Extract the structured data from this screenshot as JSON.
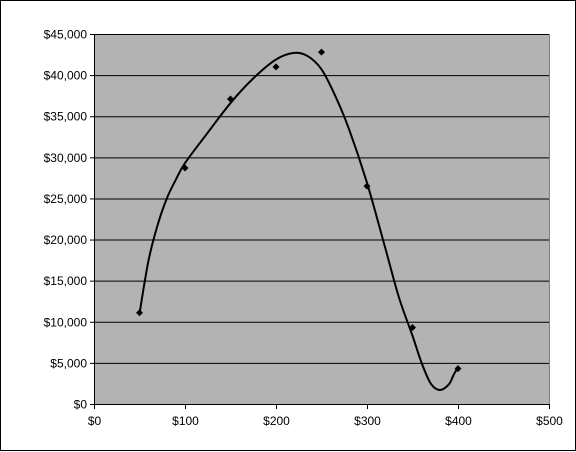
{
  "chart_data": {
    "type": "scatter",
    "title": "",
    "xlabel": "",
    "ylabel": "",
    "xlim": [
      0,
      500
    ],
    "ylim": [
      0,
      45000
    ],
    "x_ticks": [
      0,
      100,
      200,
      300,
      400,
      500
    ],
    "y_ticks": [
      0,
      5000,
      10000,
      15000,
      20000,
      25000,
      30000,
      35000,
      40000,
      45000
    ],
    "x_tick_labels": [
      "$0",
      "$100",
      "$200",
      "$300",
      "$400",
      "$500"
    ],
    "y_tick_labels": [
      "$0",
      "$5,000",
      "$10,000",
      "$15,000",
      "$20,000",
      "$25,000",
      "$30,000",
      "$35,000",
      "$40,000",
      "$45,000"
    ],
    "grid": "horizontal",
    "legend": "none",
    "colors": {
      "plot_area": "#b3b3b3",
      "marker": "#000000",
      "line": "#000000",
      "gridline": "#000000"
    },
    "series": [
      {
        "kind": "markers",
        "marker": "diamond",
        "points": [
          [
            50,
            11100
          ],
          [
            100,
            28700
          ],
          [
            150,
            37100
          ],
          [
            200,
            41000
          ],
          [
            250,
            42800
          ],
          [
            300,
            26500
          ],
          [
            350,
            9300
          ],
          [
            400,
            4300
          ]
        ]
      },
      {
        "kind": "smooth-line",
        "points": [
          [
            50,
            11000
          ],
          [
            60,
            17500
          ],
          [
            70,
            21800
          ],
          [
            80,
            25000
          ],
          [
            90,
            27300
          ],
          [
            100,
            29300
          ],
          [
            125,
            33000
          ],
          [
            150,
            36600
          ],
          [
            175,
            39600
          ],
          [
            200,
            41900
          ],
          [
            220,
            42700
          ],
          [
            235,
            42300
          ],
          [
            250,
            40700
          ],
          [
            265,
            37500
          ],
          [
            280,
            33500
          ],
          [
            300,
            26900
          ],
          [
            320,
            19000
          ],
          [
            335,
            13000
          ],
          [
            350,
            8300
          ],
          [
            360,
            5000
          ],
          [
            370,
            2500
          ],
          [
            380,
            1700
          ],
          [
            390,
            2400
          ],
          [
            395,
            3500
          ],
          [
            400,
            4500
          ]
        ]
      }
    ]
  }
}
